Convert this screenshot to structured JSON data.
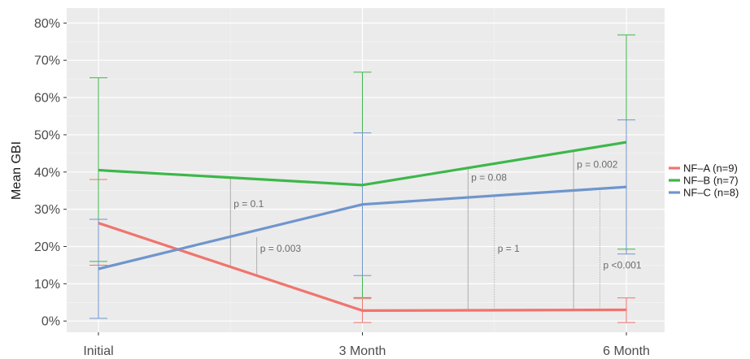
{
  "chart_data": {
    "type": "line",
    "ylabel": "Mean GBI",
    "xlabel": "",
    "categories": [
      "Initial",
      "3 Month",
      "6 Month"
    ],
    "ylim": [
      -3,
      84
    ],
    "yticks": [
      0,
      10,
      20,
      30,
      40,
      50,
      60,
      70,
      80
    ],
    "ytick_labels": [
      "0%",
      "10%",
      "20%",
      "30%",
      "40%",
      "50%",
      "60%",
      "70%",
      "80%"
    ],
    "grid": true,
    "legend_position": "right",
    "series": [
      {
        "name": "NF–A (n=9)",
        "color": "#F0746E",
        "values": [
          26.3,
          2.8,
          3.0
        ],
        "error_low": [
          15.0,
          -0.4,
          -0.4
        ],
        "error_high": [
          38.0,
          6.0,
          6.2
        ]
      },
      {
        "name": "NF–B (n=7)",
        "color": "#3DB74A",
        "values": [
          40.5,
          36.5,
          48.0
        ],
        "error_low": [
          16.0,
          6.3,
          19.3
        ],
        "error_high": [
          65.3,
          66.8,
          76.8
        ]
      },
      {
        "name": "NF–C (n=8)",
        "color": "#6F95CC",
        "values": [
          14.0,
          31.3,
          36.0
        ],
        "error_low": [
          0.7,
          12.2,
          18.0
        ],
        "error_high": [
          27.3,
          50.5,
          54.0
        ]
      }
    ],
    "annotations": [
      {
        "text": "p = 0.1",
        "x": 0.5,
        "y_label": 31.5,
        "y1": 38.5,
        "y2": 14.5,
        "dashed": false
      },
      {
        "text": "p = 0.003",
        "x": 0.6,
        "y_label": 19.5,
        "y1": 22.5,
        "y2": 12.5,
        "dashed": false
      },
      {
        "text": "p = 0.08",
        "x": 1.4,
        "y_label": 38.5,
        "y1": 41.5,
        "y2": 2.9,
        "dashed": false
      },
      {
        "text": "p = 1",
        "x": 1.5,
        "y_label": 19.5,
        "y1": 33.5,
        "y2": 2.9,
        "dashed": true
      },
      {
        "text": "p = 0.002",
        "x": 1.8,
        "y_label": 42.0,
        "y1": 45.5,
        "y2": 2.9,
        "dashed": false
      },
      {
        "text": "p <0.001",
        "x": 1.9,
        "y_label": 15.0,
        "y1": 35.5,
        "y2": 2.9,
        "dashed": true
      }
    ]
  }
}
